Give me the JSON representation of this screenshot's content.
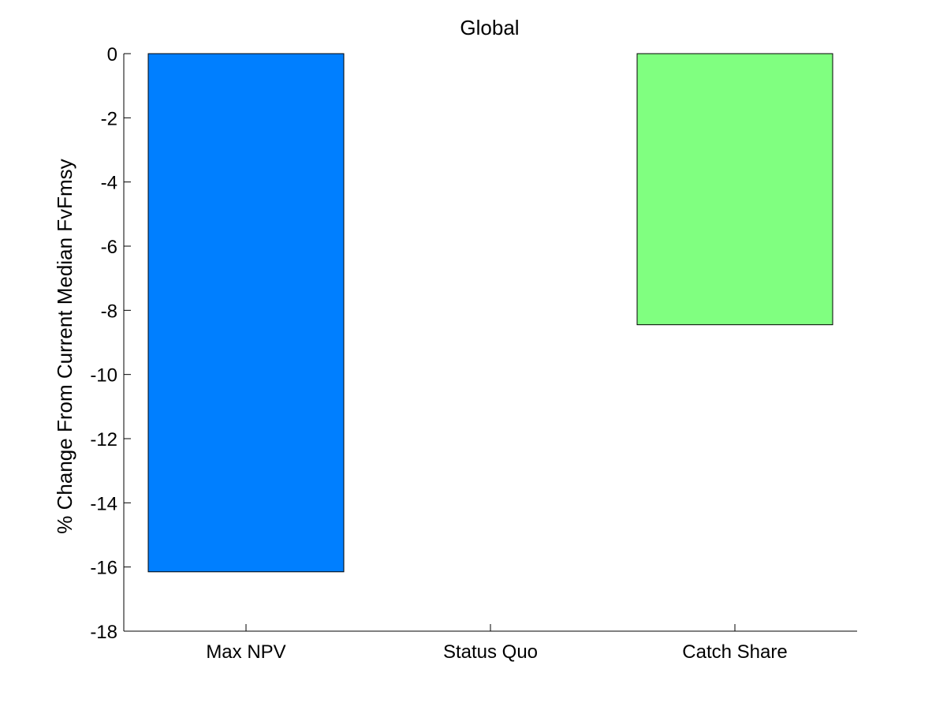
{
  "chart_data": {
    "type": "bar",
    "title": "Global",
    "xlabel": "",
    "ylabel": "% Change From Current Median FvFmsy",
    "categories": [
      "Max NPV",
      "Status Quo",
      "Catch Share"
    ],
    "values": [
      -16.15,
      0,
      -8.45
    ],
    "bar_colors": [
      "#007fff",
      "#ffffff",
      "#80ff80"
    ],
    "ylim": [
      -18,
      0
    ],
    "yticks": [
      0,
      -2,
      -4,
      -6,
      -8,
      -10,
      -12,
      -14,
      -16,
      -18
    ],
    "grid": false,
    "legend": "none"
  }
}
